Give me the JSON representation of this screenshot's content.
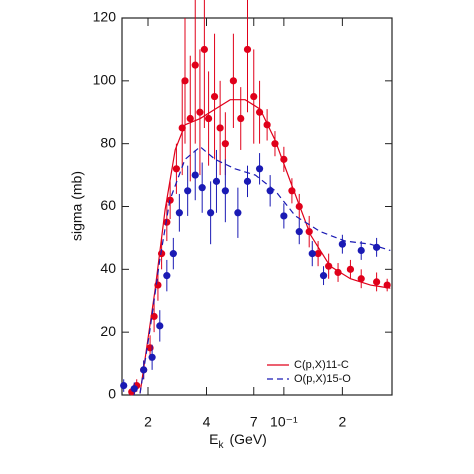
{
  "chart_data": {
    "type": "scatter",
    "x_label": {
      "main": "E",
      "sub": "k",
      "unit": "(GeV)"
    },
    "y_label": "sigma (mb)",
    "log_x": true,
    "xlim": [
      0.0147,
      0.36
    ],
    "ylim": [
      0,
      120
    ],
    "xticks": [
      {
        "value": 0.02,
        "label": "2"
      },
      {
        "value": 0.04,
        "label": "4"
      },
      {
        "value": 0.07,
        "label": "7"
      },
      {
        "value": 0.1,
        "label": "10⁻¹"
      },
      {
        "value": 0.2,
        "label": "2"
      }
    ],
    "yticks": [
      0,
      20,
      40,
      60,
      80,
      100,
      120
    ],
    "legend": "lower right",
    "series": [
      {
        "name": "C(p,X)11-C",
        "color": "#e0001a",
        "dash": "solid",
        "x": [
          0.0182,
          0.0217,
          0.0245,
          0.0276,
          0.031,
          0.0371,
          0.0443,
          0.053,
          0.0632,
          0.0755,
          0.0903,
          0.108,
          0.137,
          0.173,
          0.22,
          0.279,
          0.353
        ],
        "values": [
          0.5,
          33,
          59,
          78,
          86,
          88,
          91,
          94,
          94,
          91,
          81,
          68,
          51,
          41,
          37,
          35,
          34
        ],
        "points": {
          "x": [
            0.0165,
            0.0175,
            0.019,
            0.0205,
            0.0215,
            0.0225,
            0.0235,
            0.025,
            0.026,
            0.028,
            0.03,
            0.031,
            0.033,
            0.035,
            0.037,
            0.039,
            0.041,
            0.044,
            0.047,
            0.05,
            0.055,
            0.06,
            0.065,
            0.07,
            0.075,
            0.082,
            0.09,
            0.1,
            0.11,
            0.12,
            0.135,
            0.15,
            0.17,
            0.19,
            0.22,
            0.25,
            0.3,
            0.34
          ],
          "values": [
            1,
            3,
            8,
            15,
            25,
            35,
            45,
            55,
            62,
            72,
            85,
            100,
            88,
            105,
            90,
            110,
            88,
            95,
            85,
            80,
            100,
            88,
            110,
            95,
            90,
            86,
            80,
            75,
            65,
            60,
            52,
            45,
            41,
            39,
            40,
            37,
            36,
            35
          ],
          "errors": [
            1,
            2,
            3,
            4,
            5,
            5,
            5,
            6,
            6,
            8,
            15,
            20,
            20,
            25,
            20,
            25,
            15,
            20,
            15,
            10,
            15,
            10,
            20,
            15,
            10,
            5,
            4,
            4,
            4,
            4,
            5,
            4,
            4,
            3,
            3,
            3,
            3,
            2
          ]
        }
      },
      {
        "name": "O(p,X)15-O",
        "color": "#1a1ab4",
        "dash": "dashed",
        "x": [
          0.0182,
          0.0205,
          0.023,
          0.0259,
          0.031,
          0.0371,
          0.0443,
          0.0561,
          0.0713,
          0.0903,
          0.1146,
          0.154,
          0.207,
          0.279,
          0.353
        ],
        "values": [
          0.5,
          21,
          43,
          62,
          75,
          79,
          75,
          72,
          70,
          65,
          57,
          52,
          49,
          48,
          46
        ],
        "points": {
          "x": [
            0.015,
            0.017,
            0.019,
            0.021,
            0.023,
            0.025,
            0.027,
            0.029,
            0.032,
            0.035,
            0.038,
            0.042,
            0.045,
            0.05,
            0.058,
            0.065,
            0.075,
            0.085,
            0.1,
            0.12,
            0.14,
            0.16,
            0.2,
            0.25,
            0.3
          ],
          "values": [
            3,
            2,
            8,
            12,
            22,
            38,
            45,
            58,
            65,
            70,
            66,
            58,
            68,
            65,
            58,
            68,
            72,
            65,
            57,
            52,
            45,
            38,
            48,
            46,
            47
          ],
          "errors": [
            2,
            2,
            3,
            4,
            5,
            5,
            5,
            6,
            8,
            8,
            8,
            10,
            10,
            10,
            8,
            5,
            5,
            5,
            4,
            4,
            4,
            3,
            3,
            3,
            3
          ]
        }
      }
    ]
  }
}
